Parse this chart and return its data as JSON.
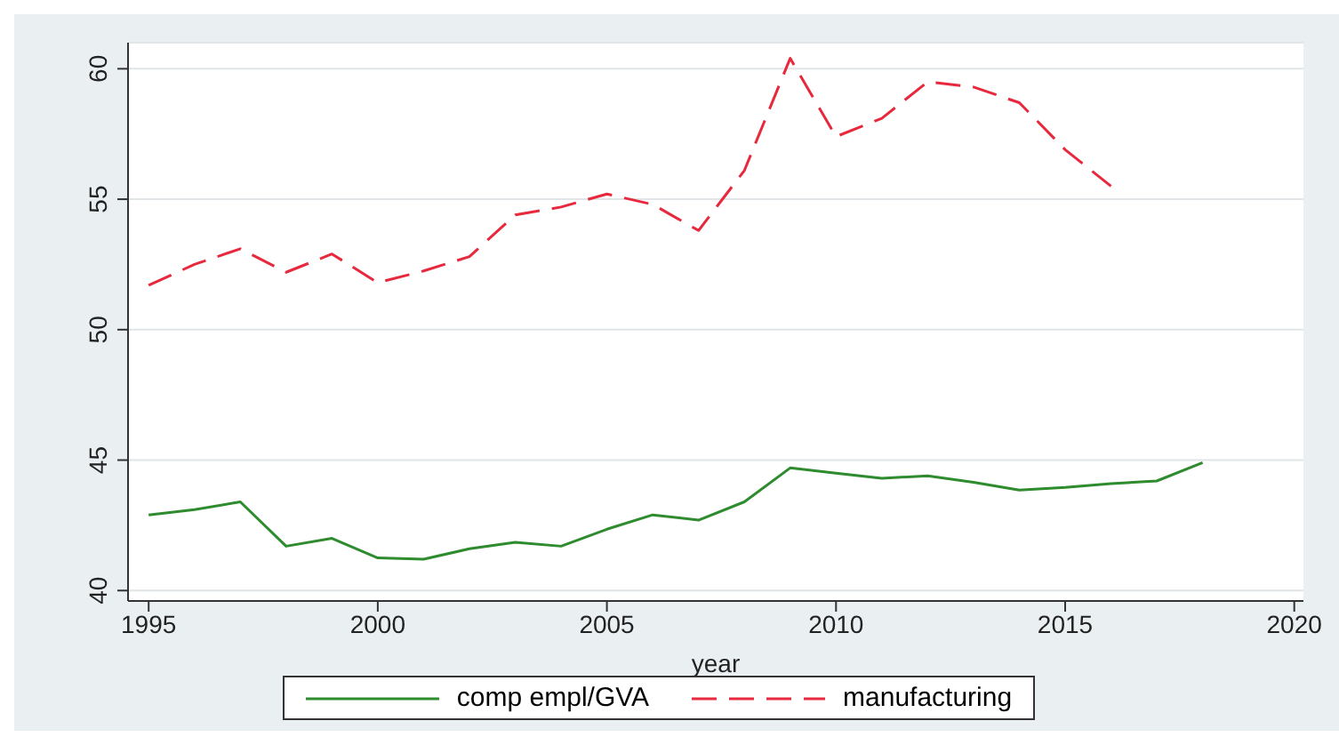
{
  "chart_data": {
    "type": "line",
    "xlabel": "year",
    "x": [
      1995,
      1996,
      1997,
      1998,
      1999,
      2000,
      2001,
      2002,
      2003,
      2004,
      2005,
      2006,
      2007,
      2008,
      2009,
      2010,
      2011,
      2012,
      2013,
      2014,
      2015,
      2016,
      2017,
      2018
    ],
    "series": [
      {
        "name": "comp empl/GVA",
        "color": "#2e8b2e",
        "line_style": "solid",
        "values": [
          42.9,
          43.1,
          43.4,
          41.7,
          42.0,
          41.25,
          41.2,
          41.6,
          41.85,
          41.7,
          42.35,
          42.9,
          42.7,
          43.4,
          44.7,
          44.5,
          44.3,
          44.4,
          44.15,
          43.85,
          43.95,
          44.1,
          44.2,
          44.9
        ]
      },
      {
        "name": "manufacturing",
        "color": "#e8283c",
        "line_style": "dashed",
        "values": [
          51.7,
          52.5,
          53.1,
          52.2,
          52.9,
          51.8,
          52.25,
          52.8,
          54.4,
          54.7,
          55.2,
          54.8,
          53.8,
          56.1,
          60.4,
          57.4,
          58.1,
          59.5,
          59.3,
          58.7,
          56.9,
          55.5,
          null,
          null
        ]
      }
    ],
    "xlim": [
      1994.55,
      2020.2
    ],
    "xticks": [
      1995,
      2000,
      2005,
      2010,
      2015,
      2020
    ],
    "ylim": [
      39.6,
      61
    ],
    "yticks": [
      40,
      45,
      50,
      55,
      60
    ],
    "grid": "y",
    "legend": "bottom",
    "marker": "none"
  }
}
